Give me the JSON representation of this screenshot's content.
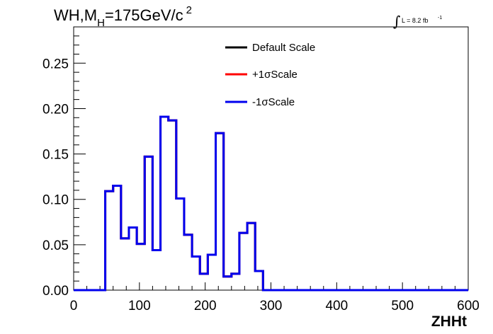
{
  "title": {
    "main_a": "WH,M",
    "sub_a": "H",
    "main_b": "=175GeV/c",
    "sup_b": "2"
  },
  "luminosity": {
    "symbol": "∫",
    "text": "L = 8.2 fb",
    "sup": "-1"
  },
  "chart_data": {
    "type": "line",
    "style": "step-histogram",
    "xlabel": "ZHHt",
    "ylabel": "",
    "xlim": [
      0,
      600
    ],
    "ylim": [
      0,
      0.29
    ],
    "x_ticks": [
      "0",
      "100",
      "200",
      "300",
      "400",
      "500",
      "600"
    ],
    "y_ticks": [
      "0.00",
      "0.05",
      "0.10",
      "0.15",
      "0.20",
      "0.25"
    ],
    "grid": false,
    "legend_position": "top-center",
    "bin_edges": [
      0,
      12,
      24,
      36,
      48,
      60,
      72,
      84,
      96,
      108,
      120,
      132,
      144,
      156,
      168,
      180,
      192,
      204,
      216,
      228,
      240,
      252,
      264,
      276,
      288,
      300,
      312,
      324,
      336,
      348,
      360,
      372,
      384,
      396,
      408,
      420,
      432,
      444,
      456,
      468,
      480,
      492,
      504,
      516,
      528,
      540,
      552,
      564,
      576,
      588,
      600
    ],
    "series": [
      {
        "name": "Default Scale",
        "color": "#000000",
        "values": [
          0,
          0,
          0,
          0,
          0.109,
          0.115,
          0.057,
          0.069,
          0.051,
          0.147,
          0.044,
          0.191,
          0.187,
          0.101,
          0.061,
          0.037,
          0.018,
          0.039,
          0.173,
          0.015,
          0.018,
          0.063,
          0.074,
          0.021,
          0,
          0,
          0,
          0,
          0,
          0,
          0,
          0,
          0,
          0,
          0,
          0,
          0,
          0,
          0,
          0,
          0,
          0,
          0,
          0,
          0,
          0,
          0,
          0,
          0,
          0
        ]
      },
      {
        "name": "+1σScale",
        "color": "#ff0000",
        "values": [
          0,
          0,
          0,
          0,
          0.109,
          0.115,
          0.057,
          0.069,
          0.051,
          0.147,
          0.044,
          0.191,
          0.187,
          0.101,
          0.061,
          0.037,
          0.018,
          0.039,
          0.173,
          0.015,
          0.018,
          0.063,
          0.074,
          0.021,
          0,
          0,
          0,
          0,
          0,
          0,
          0,
          0,
          0,
          0,
          0,
          0,
          0,
          0,
          0,
          0,
          0,
          0,
          0,
          0,
          0,
          0,
          0,
          0,
          0,
          0
        ]
      },
      {
        "name": "-1σScale",
        "color": "#0000ee",
        "values": [
          0,
          0,
          0,
          0,
          0.109,
          0.115,
          0.057,
          0.069,
          0.051,
          0.147,
          0.044,
          0.191,
          0.187,
          0.101,
          0.061,
          0.037,
          0.018,
          0.039,
          0.173,
          0.015,
          0.018,
          0.063,
          0.074,
          0.021,
          0,
          0,
          0,
          0,
          0,
          0,
          0,
          0,
          0,
          0,
          0,
          0,
          0,
          0,
          0,
          0,
          0,
          0,
          0,
          0,
          0,
          0,
          0,
          0,
          0,
          0
        ]
      }
    ]
  }
}
